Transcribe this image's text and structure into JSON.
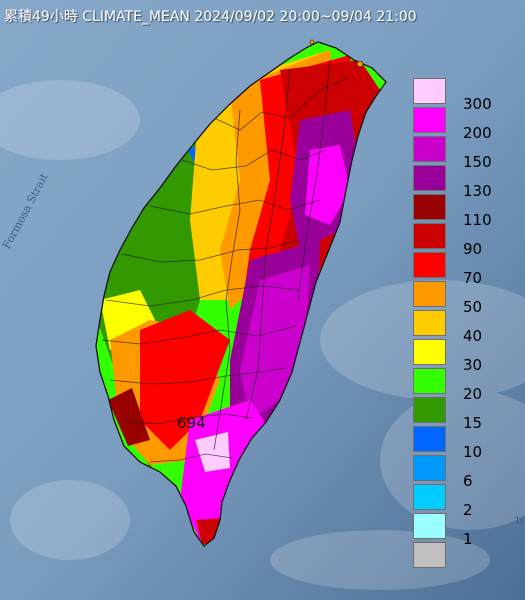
{
  "title": "累積49小時 CLIMATE_MEAN 2024/09/02 20:00~09/04 21:00",
  "strait_label": "Formosa Strait",
  "max_value_label": "694",
  "corner_mark": "1(",
  "legend": {
    "items": [
      {
        "label": "300",
        "color": "#ffccff"
      },
      {
        "label": "200",
        "color": "#ff00ff"
      },
      {
        "label": "150",
        "color": "#cc00cc"
      },
      {
        "label": "130",
        "color": "#990099"
      },
      {
        "label": "110",
        "color": "#990000"
      },
      {
        "label": "90",
        "color": "#cc0000"
      },
      {
        "label": "70",
        "color": "#ff0000"
      },
      {
        "label": "50",
        "color": "#ff9900"
      },
      {
        "label": "40",
        "color": "#ffcc00"
      },
      {
        "label": "30",
        "color": "#ffff00"
      },
      {
        "label": "20",
        "color": "#33ff00"
      },
      {
        "label": "15",
        "color": "#339900"
      },
      {
        "label": "10",
        "color": "#0066ff"
      },
      {
        "label": "6",
        "color": "#0099ff"
      },
      {
        "label": "2",
        "color": "#00ccff"
      },
      {
        "label": "1",
        "color": "#99ffff"
      },
      {
        "label": "",
        "color": "#c0c0c0"
      }
    ]
  },
  "colors": {
    "sea_light": "#8fb0d0",
    "sea_dark": "#4f7196"
  }
}
